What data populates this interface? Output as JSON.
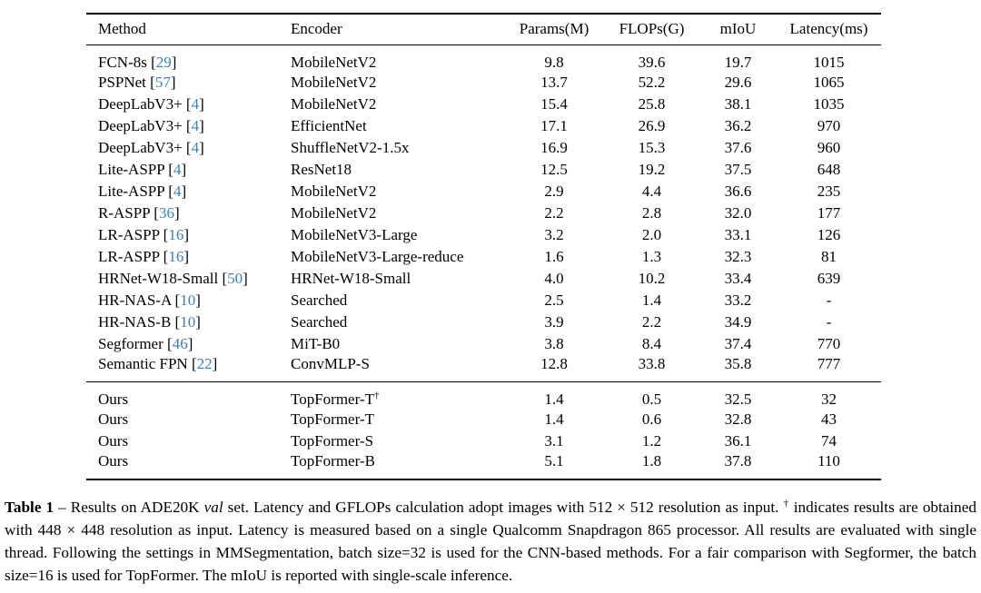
{
  "page": {
    "background": "#ffffff",
    "text_color": "#000000",
    "link_color": "#3b7ec0"
  },
  "table": {
    "columns": [
      "Method",
      "Encoder",
      "Params(M)",
      "FLOPs(G)",
      "mIoU",
      "Latency(ms)"
    ],
    "baseline_rows": [
      {
        "method": "FCN-8s",
        "cite": "29",
        "encoder": "MobileNetV2",
        "encoder_sup": "",
        "params": "9.8",
        "flops": "39.6",
        "miou": "19.7",
        "latency": "1015"
      },
      {
        "method": "PSPNet",
        "cite": "57",
        "encoder": "MobileNetV2",
        "encoder_sup": "",
        "params": "13.7",
        "flops": "52.2",
        "miou": "29.6",
        "latency": "1065"
      },
      {
        "method": "DeepLabV3+",
        "cite": "4",
        "encoder": "MobileNetV2",
        "encoder_sup": "",
        "params": "15.4",
        "flops": "25.8",
        "miou": "38.1",
        "latency": "1035"
      },
      {
        "method": "DeepLabV3+",
        "cite": "4",
        "encoder": "EfficientNet",
        "encoder_sup": "",
        "params": "17.1",
        "flops": "26.9",
        "miou": "36.2",
        "latency": "970"
      },
      {
        "method": "DeepLabV3+",
        "cite": "4",
        "encoder": "ShuffleNetV2-1.5x",
        "encoder_sup": "",
        "params": "16.9",
        "flops": "15.3",
        "miou": "37.6",
        "latency": "960"
      },
      {
        "method": "Lite-ASPP",
        "cite": "4",
        "encoder": "ResNet18",
        "encoder_sup": "",
        "params": "12.5",
        "flops": "19.2",
        "miou": "37.5",
        "latency": "648"
      },
      {
        "method": "Lite-ASPP",
        "cite": "4",
        "encoder": "MobileNetV2",
        "encoder_sup": "",
        "params": "2.9",
        "flops": "4.4",
        "miou": "36.6",
        "latency": "235"
      },
      {
        "method": "R-ASPP",
        "cite": "36",
        "encoder": "MobileNetV2",
        "encoder_sup": "",
        "params": "2.2",
        "flops": "2.8",
        "miou": "32.0",
        "latency": "177"
      },
      {
        "method": "LR-ASPP",
        "cite": "16",
        "encoder": "MobileNetV3-Large",
        "encoder_sup": "",
        "params": "3.2",
        "flops": "2.0",
        "miou": "33.1",
        "latency": "126"
      },
      {
        "method": "LR-ASPP",
        "cite": "16",
        "encoder": "MobileNetV3-Large-reduce",
        "encoder_sup": "",
        "params": "1.6",
        "flops": "1.3",
        "miou": "32.3",
        "latency": "81"
      },
      {
        "method": "HRNet-W18-Small",
        "cite": "50",
        "encoder": "HRNet-W18-Small",
        "encoder_sup": "",
        "params": "4.0",
        "flops": "10.2",
        "miou": "33.4",
        "latency": "639"
      },
      {
        "method": "HR-NAS-A",
        "cite": "10",
        "encoder": "Searched",
        "encoder_sup": "",
        "params": "2.5",
        "flops": "1.4",
        "miou": "33.2",
        "latency": "-"
      },
      {
        "method": "HR-NAS-B",
        "cite": "10",
        "encoder": "Searched",
        "encoder_sup": "",
        "params": "3.9",
        "flops": "2.2",
        "miou": "34.9",
        "latency": "-"
      },
      {
        "method": "Segformer",
        "cite": "46",
        "encoder": "MiT-B0",
        "encoder_sup": "",
        "params": "3.8",
        "flops": "8.4",
        "miou": "37.4",
        "latency": "770"
      },
      {
        "method": "Semantic FPN",
        "cite": "22",
        "encoder": "ConvMLP-S",
        "encoder_sup": "",
        "params": "12.8",
        "flops": "33.8",
        "miou": "35.8",
        "latency": "777"
      }
    ],
    "ours_rows": [
      {
        "method": "Ours",
        "cite": "",
        "encoder": "TopFormer-T",
        "encoder_sup": "†",
        "params": "1.4",
        "flops": "0.5",
        "miou": "32.5",
        "latency": "32"
      },
      {
        "method": "Ours",
        "cite": "",
        "encoder": "TopFormer-T",
        "encoder_sup": "",
        "params": "1.4",
        "flops": "0.6",
        "miou": "32.8",
        "latency": "43"
      },
      {
        "method": "Ours",
        "cite": "",
        "encoder": "TopFormer-S",
        "encoder_sup": "",
        "params": "3.1",
        "flops": "1.2",
        "miou": "36.1",
        "latency": "74"
      },
      {
        "method": "Ours",
        "cite": "",
        "encoder": "TopFormer-B",
        "encoder_sup": "",
        "params": "5.1",
        "flops": "1.8",
        "miou": "37.8",
        "latency": "110"
      }
    ]
  },
  "caption": {
    "segments": [
      {
        "text": "Table 1",
        "style": "bold"
      },
      {
        "text": " – Results on ADE20K ",
        "style": "normal"
      },
      {
        "text": "val",
        "style": "italic"
      },
      {
        "text": " set. Latency and GFLOPs calculation adopt images with 512 × 512 resolution as input. ",
        "style": "normal"
      },
      {
        "text": "†",
        "style": "sup"
      },
      {
        "text": " indicates results are obtained with 448 × 448 resolution as input. Latency is measured based on a single Qualcomm Snapdragon 865 processor. All results are evaluated with single thread. Following the settings in MMSegmentation, batch size=32 is used for the CNN-based methods. For a fair comparison with Segformer, the batch size=16 is used for TopFormer. The mIoU is reported with single-scale inference.",
        "style": "normal"
      }
    ]
  }
}
